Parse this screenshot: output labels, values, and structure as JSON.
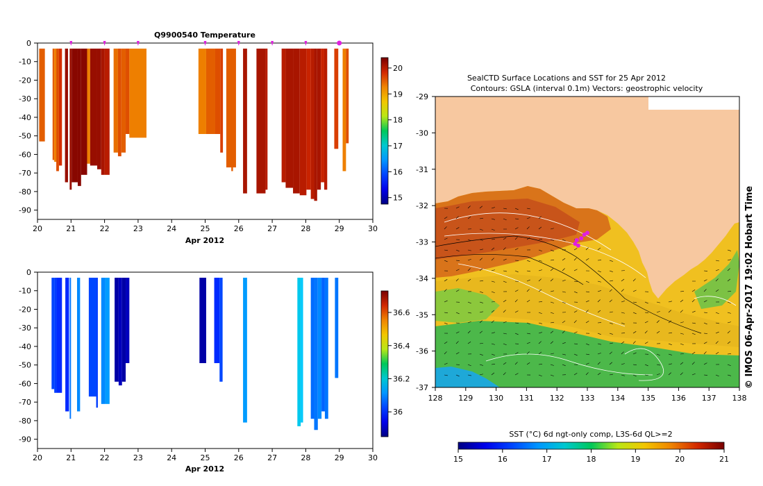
{
  "chart_data": [
    {
      "type": "bar",
      "title": "Q9900540  Temperature",
      "xlabel": "Apr 2012",
      "ylabel": "",
      "xlim": [
        20,
        30
      ],
      "ylim": [
        -95,
        0
      ],
      "x_ticks": [
        "20",
        "21",
        "22",
        "23",
        "24",
        "25",
        "26",
        "27",
        "28",
        "29",
        "30"
      ],
      "y_ticks": [
        "0",
        "-10",
        "-20",
        "-30",
        "-40",
        "-50",
        "-60",
        "-70",
        "-80",
        "-90"
      ],
      "profile_markers": [
        21.0,
        22.0,
        23.0,
        25.0,
        26.0,
        27.0,
        28.0,
        29.0
      ],
      "colorbar": {
        "min": 14.75,
        "max": 20.4,
        "ticks": [
          "15",
          "16",
          "17",
          "18",
          "19",
          "20"
        ]
      },
      "bars": [
        {
          "x0": 20.05,
          "x1": 20.22,
          "depth": 53,
          "value": 19.5
        },
        {
          "x0": 20.45,
          "x1": 20.5,
          "depth": 63,
          "value": 19.5
        },
        {
          "x0": 20.5,
          "x1": 20.56,
          "depth": 64,
          "value": 19.3
        },
        {
          "x0": 20.56,
          "x1": 20.64,
          "depth": 69,
          "value": 19.6
        },
        {
          "x0": 20.64,
          "x1": 20.73,
          "depth": 66,
          "value": 19.8
        },
        {
          "x0": 20.82,
          "x1": 20.91,
          "depth": 75,
          "value": 20.2
        },
        {
          "x0": 20.96,
          "x1": 21.02,
          "depth": 79,
          "value": 20.2
        },
        {
          "x0": 21.02,
          "x1": 21.2,
          "depth": 75,
          "value": 20.3
        },
        {
          "x0": 21.2,
          "x1": 21.3,
          "depth": 77,
          "value": 20.3
        },
        {
          "x0": 21.3,
          "x1": 21.48,
          "depth": 71,
          "value": 20.3
        },
        {
          "x0": 21.48,
          "x1": 21.57,
          "depth": 65,
          "value": 19.3
        },
        {
          "x0": 21.57,
          "x1": 21.78,
          "depth": 66,
          "value": 20.2
        },
        {
          "x0": 21.78,
          "x1": 21.9,
          "depth": 68,
          "value": 20.2
        },
        {
          "x0": 21.9,
          "x1": 22.0,
          "depth": 71,
          "value": 20.1
        },
        {
          "x0": 22.0,
          "x1": 22.15,
          "depth": 71,
          "value": 20.0
        },
        {
          "x0": 22.27,
          "x1": 22.4,
          "depth": 59,
          "value": 19.4
        },
        {
          "x0": 22.4,
          "x1": 22.5,
          "depth": 61,
          "value": 19.6
        },
        {
          "x0": 22.5,
          "x1": 22.63,
          "depth": 59,
          "value": 19.5
        },
        {
          "x0": 22.63,
          "x1": 22.74,
          "depth": 49,
          "value": 19.6
        },
        {
          "x0": 22.74,
          "x1": 23.25,
          "depth": 51,
          "value": 19.3
        },
        {
          "x0": 24.8,
          "x1": 25.03,
          "depth": 49,
          "value": 19.3
        },
        {
          "x0": 25.03,
          "x1": 25.3,
          "depth": 49,
          "value": 19.5
        },
        {
          "x0": 25.3,
          "x1": 25.45,
          "depth": 49,
          "value": 19.6
        },
        {
          "x0": 25.45,
          "x1": 25.53,
          "depth": 59,
          "value": 19.7
        },
        {
          "x0": 25.63,
          "x1": 25.92,
          "depth": 67,
          "value": 19.5
        },
        {
          "x0": 25.78,
          "x1": 25.83,
          "depth": 69,
          "value": 19.5
        },
        {
          "x0": 26.13,
          "x1": 26.25,
          "depth": 81,
          "value": 20.1
        },
        {
          "x0": 26.53,
          "x1": 26.8,
          "depth": 81,
          "value": 20.1
        },
        {
          "x0": 26.8,
          "x1": 26.86,
          "depth": 79,
          "value": 20.0
        },
        {
          "x0": 27.28,
          "x1": 27.4,
          "depth": 75,
          "value": 20.0
        },
        {
          "x0": 27.4,
          "x1": 27.62,
          "depth": 78,
          "value": 20.1
        },
        {
          "x0": 27.62,
          "x1": 27.82,
          "depth": 81,
          "value": 20.1
        },
        {
          "x0": 27.82,
          "x1": 28.02,
          "depth": 82,
          "value": 20.0
        },
        {
          "x0": 28.02,
          "x1": 28.15,
          "depth": 79,
          "value": 19.9
        },
        {
          "x0": 28.15,
          "x1": 28.25,
          "depth": 84,
          "value": 20.0
        },
        {
          "x0": 28.25,
          "x1": 28.34,
          "depth": 85,
          "value": 20.1
        },
        {
          "x0": 28.34,
          "x1": 28.45,
          "depth": 79,
          "value": 20.1
        },
        {
          "x0": 28.45,
          "x1": 28.55,
          "depth": 75,
          "value": 19.9
        },
        {
          "x0": 28.55,
          "x1": 28.64,
          "depth": 79,
          "value": 20.0
        },
        {
          "x0": 28.85,
          "x1": 28.97,
          "depth": 57,
          "value": 19.7
        },
        {
          "x0": 29.1,
          "x1": 29.2,
          "depth": 69,
          "value": 19.3
        },
        {
          "x0": 29.2,
          "x1": 29.28,
          "depth": 54,
          "value": 19.6
        }
      ]
    },
    {
      "type": "bar",
      "title": "",
      "xlabel": "Apr 2012",
      "ylabel": "",
      "xlim": [
        20,
        30
      ],
      "ylim": [
        -95,
        0
      ],
      "x_ticks": [
        "20",
        "21",
        "22",
        "23",
        "24",
        "25",
        "26",
        "27",
        "28",
        "29",
        "30"
      ],
      "y_ticks": [
        "0",
        "-10",
        "-20",
        "-30",
        "-40",
        "-50",
        "-60",
        "-70",
        "-80",
        "-90"
      ],
      "colorbar": {
        "min": 35.85,
        "max": 36.73,
        "ticks": [
          "36",
          "36.2",
          "36.4",
          "36.6"
        ]
      },
      "bars": [
        {
          "x0": 20.42,
          "x1": 20.5,
          "depth": 63,
          "value": 36.03
        },
        {
          "x0": 20.5,
          "x1": 20.57,
          "depth": 65,
          "value": 36.02
        },
        {
          "x0": 20.57,
          "x1": 20.73,
          "depth": 65,
          "value": 36.0
        },
        {
          "x0": 20.83,
          "x1": 20.94,
          "depth": 75,
          "value": 36.0
        },
        {
          "x0": 20.96,
          "x1": 21.0,
          "depth": 79,
          "value": 36.08
        },
        {
          "x0": 21.18,
          "x1": 21.27,
          "depth": 75,
          "value": 36.1
        },
        {
          "x0": 21.53,
          "x1": 21.75,
          "depth": 67,
          "value": 36.03
        },
        {
          "x0": 21.75,
          "x1": 21.8,
          "depth": 73,
          "value": 36.02
        },
        {
          "x0": 21.9,
          "x1": 22.02,
          "depth": 71,
          "value": 36.1
        },
        {
          "x0": 22.02,
          "x1": 22.15,
          "depth": 71,
          "value": 36.12
        },
        {
          "x0": 22.3,
          "x1": 22.42,
          "depth": 59,
          "value": 35.88
        },
        {
          "x0": 22.42,
          "x1": 22.52,
          "depth": 61,
          "value": 35.9
        },
        {
          "x0": 22.52,
          "x1": 22.63,
          "depth": 59,
          "value": 35.88
        },
        {
          "x0": 22.63,
          "x1": 22.74,
          "depth": 49,
          "value": 35.9
        },
        {
          "x0": 24.83,
          "x1": 25.03,
          "depth": 49,
          "value": 35.88
        },
        {
          "x0": 25.27,
          "x1": 25.43,
          "depth": 49,
          "value": 36.0
        },
        {
          "x0": 25.43,
          "x1": 25.52,
          "depth": 59,
          "value": 36.03
        },
        {
          "x0": 26.13,
          "x1": 26.25,
          "depth": 81,
          "value": 36.12
        },
        {
          "x0": 27.75,
          "x1": 27.85,
          "depth": 83,
          "value": 36.18
        },
        {
          "x0": 27.85,
          "x1": 27.92,
          "depth": 81,
          "value": 36.17
        },
        {
          "x0": 28.15,
          "x1": 28.25,
          "depth": 79,
          "value": 36.07
        },
        {
          "x0": 28.25,
          "x1": 28.36,
          "depth": 85,
          "value": 36.08
        },
        {
          "x0": 28.36,
          "x1": 28.47,
          "depth": 79,
          "value": 36.1
        },
        {
          "x0": 28.47,
          "x1": 28.57,
          "depth": 75,
          "value": 36.06
        },
        {
          "x0": 28.57,
          "x1": 28.67,
          "depth": 79,
          "value": 36.08
        },
        {
          "x0": 28.87,
          "x1": 28.97,
          "depth": 57,
          "value": 36.08
        }
      ]
    },
    {
      "type": "heatmap",
      "title": "SealCTD Surface Locations and SST for 25 Apr 2012",
      "subtitle": "Contours: GSLA (interval 0.1m) Vectors: geostrophic velocity",
      "x_ticks": [
        "128",
        "129",
        "130",
        "131",
        "132",
        "133",
        "134",
        "135",
        "136",
        "137",
        "138"
      ],
      "y_ticks": [
        "-29",
        "-30",
        "-31",
        "-32",
        "-33",
        "-34",
        "-35",
        "-36",
        "-37"
      ],
      "xlim": [
        128,
        138
      ],
      "ylim": [
        -37,
        -29
      ],
      "colorbar_label": "SST (°C) 6d ngt-only comp, L3S-6d QL>=2",
      "colorbar": {
        "min": 15,
        "max": 21,
        "ticks": [
          "15",
          "16",
          "17",
          "18",
          "19",
          "20",
          "21"
        ]
      },
      "surface_locations": [
        {
          "lon": 132.6,
          "lat": -33.05
        },
        {
          "lon": 132.65,
          "lat": -32.95
        },
        {
          "lon": 132.7,
          "lat": -33.1
        },
        {
          "lon": 132.9,
          "lat": -32.8
        },
        {
          "lon": 133.0,
          "lat": -32.75
        },
        {
          "lon": 132.8,
          "lat": -32.9
        }
      ],
      "side_label": "© IMOS 06-Apr-2017 19:02 Hobart Time"
    }
  ]
}
